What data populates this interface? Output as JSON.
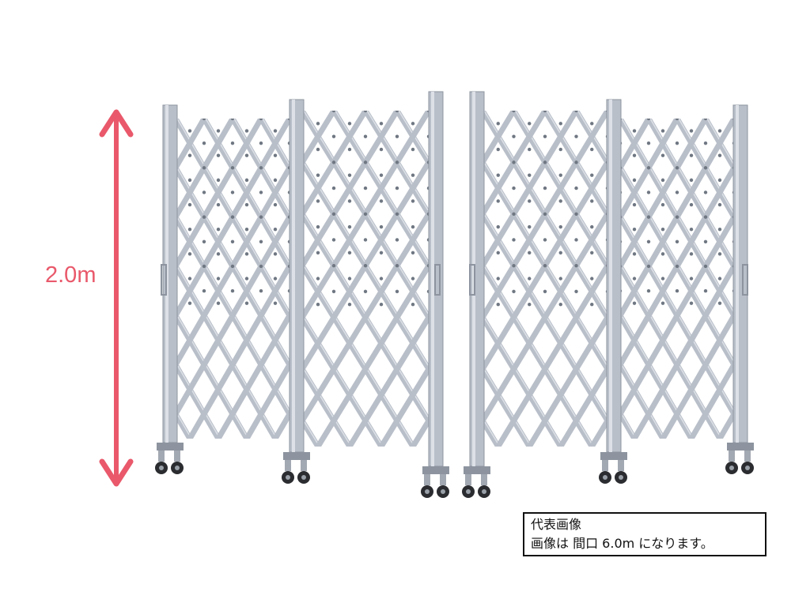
{
  "dimension": {
    "height_label": "2.0m",
    "arrow_color": "#e9596b"
  },
  "product_image": {
    "subject": "aluminium accordion expansion gate on casters, two leaves",
    "frame_color": "#b9bfc9"
  },
  "caption": {
    "line1": "代表画像",
    "line2": "画像は 間口 6.0m になります。"
  }
}
